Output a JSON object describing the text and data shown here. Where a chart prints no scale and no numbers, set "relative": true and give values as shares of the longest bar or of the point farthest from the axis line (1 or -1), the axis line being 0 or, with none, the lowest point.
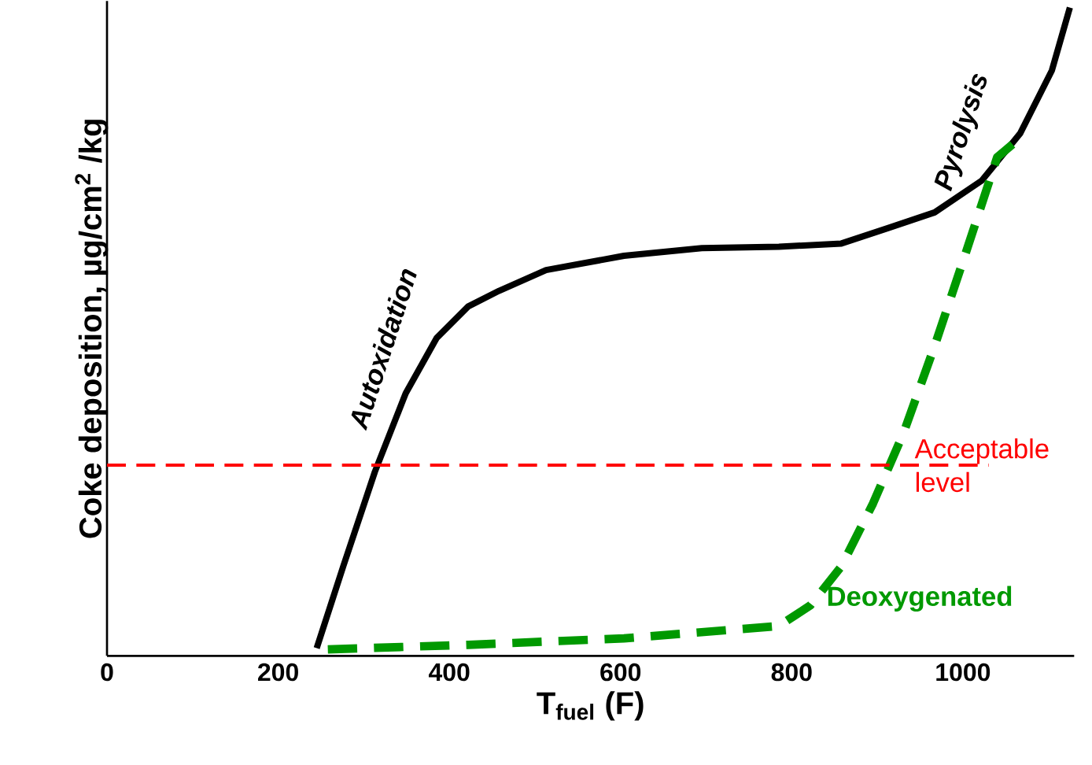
{
  "chart_data": {
    "type": "line",
    "relative": true,
    "xlabel": "T$_{fuel}$  (F)",
    "ylabel": "Coke deposition,    µg/cm$^{2}$ /kg",
    "xlim": [
      0,
      1130
    ],
    "xticks": [
      0,
      200,
      400,
      600,
      800,
      1000
    ],
    "grid": false,
    "marker": "none",
    "series": [
      {
        "color": "#000000",
        "line_style": "solid",
        "x": [
          245,
          276,
          313,
          349,
          385,
          422,
          458,
          513,
          604,
          695,
          785,
          858,
          913,
          967,
          1022,
          1067,
          1104,
          1125
        ],
        "values": [
          0.012,
          0.138,
          0.284,
          0.405,
          0.49,
          0.539,
          0.563,
          0.595,
          0.617,
          0.629,
          0.631,
          0.636,
          0.66,
          0.684,
          0.733,
          0.806,
          0.903,
          1.0
        ]
      },
      {
        "name": "Deoxygenated",
        "color": "#009900",
        "line_style": "dashed",
        "x": [
          258,
          422,
          604,
          785,
          822,
          858,
          895,
          931,
          967,
          1004,
          1040,
          1058
        ],
        "values": [
          0.01,
          0.017,
          0.027,
          0.046,
          0.078,
          0.138,
          0.235,
          0.345,
          0.478,
          0.624,
          0.769,
          0.789
        ]
      }
    ],
    "ref_lines": [
      {
        "axis": "y",
        "value": 0.294,
        "label": "Acceptable level",
        "color": "#ff0000",
        "line_style": "dashed"
      }
    ],
    "annotations": [
      "Autoxidation",
      "Pyrolysis"
    ]
  }
}
